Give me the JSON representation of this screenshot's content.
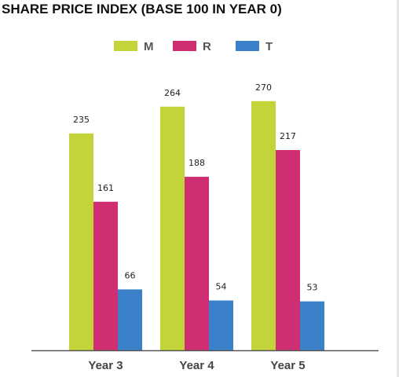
{
  "chart_data": {
    "type": "bar",
    "title": "SHARE PRICE INDEX (BASE 100 IN YEAR 0)",
    "categories": [
      "Year 3",
      "Year 4",
      "Year 5"
    ],
    "series": [
      {
        "name": "M",
        "values": [
          235,
          264,
          270
        ],
        "color": "#c2d43a"
      },
      {
        "name": "R",
        "values": [
          161,
          188,
          217
        ],
        "color": "#d02e72"
      },
      {
        "name": "T",
        "values": [
          66,
          54,
          53
        ],
        "color": "#3a81c9"
      }
    ],
    "data_labels": true,
    "legend_position": "top-center",
    "ylim": [
      0,
      300
    ],
    "y_axis_visible": false,
    "grid": false
  }
}
